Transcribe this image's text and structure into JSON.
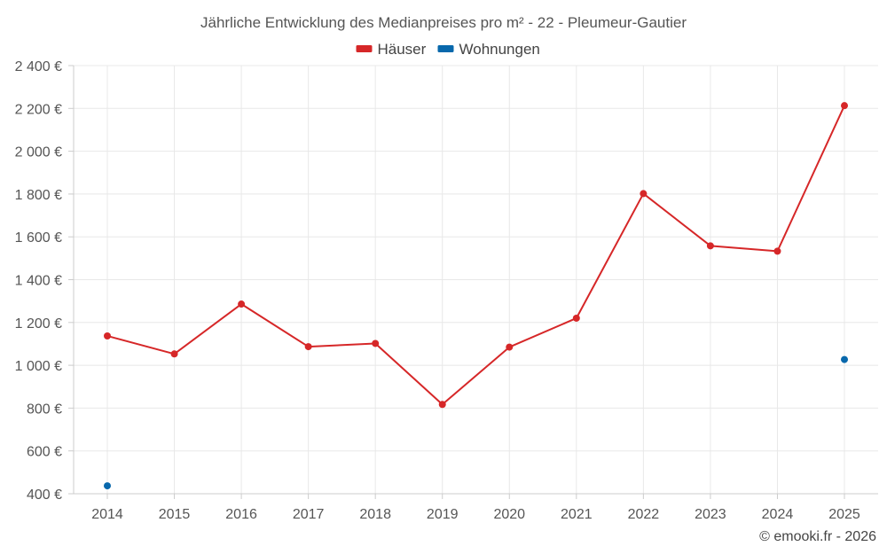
{
  "chart_data": {
    "type": "line",
    "title": "Jährliche Entwicklung des Medianpreises pro m² - 22 - Pleumeur-Gautier",
    "categories": [
      "2014",
      "2015",
      "2016",
      "2017",
      "2018",
      "2019",
      "2020",
      "2021",
      "2022",
      "2023",
      "2024",
      "2025"
    ],
    "series": [
      {
        "name": "Häuser",
        "color": "#d62728",
        "values": [
          1137,
          1053,
          1286,
          1087,
          1102,
          817,
          1085,
          1220,
          1802,
          1558,
          1533,
          2213
        ]
      },
      {
        "name": "Wohnungen",
        "color": "#0868ac",
        "values": [
          437,
          null,
          null,
          null,
          null,
          null,
          null,
          null,
          null,
          null,
          null,
          1027
        ]
      }
    ],
    "ylim": [
      400,
      2400
    ],
    "yticks": [
      400,
      600,
      800,
      1000,
      1200,
      1400,
      1600,
      1800,
      2000,
      2200,
      2400
    ],
    "ytick_labels": [
      "400 €",
      "600 €",
      "800 €",
      "1 000 €",
      "1 200 €",
      "1 400 €",
      "1 600 €",
      "1 800 €",
      "2 000 €",
      "2 200 €",
      "2 400 €"
    ],
    "xlabel": "",
    "ylabel": "",
    "grid": true,
    "legend_position": "top-center"
  },
  "credit": "© emooki.fr - 2026"
}
